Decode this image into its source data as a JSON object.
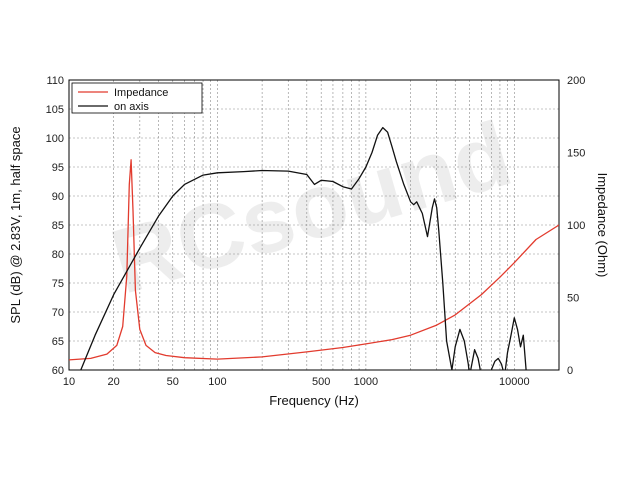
{
  "chart_data": {
    "type": "line",
    "xlabel": "Frequency (Hz)",
    "ylabel": "SPL (dB) @ 2.83V, 1m, half space",
    "y2label": "Impedance (Ohm)",
    "xscale": "log",
    "xlim": [
      10,
      20000
    ],
    "ylim": [
      60,
      110
    ],
    "y2lim": [
      0,
      200
    ],
    "grid": true,
    "legend_position": "top-left",
    "x_ticks": [
      10,
      20,
      50,
      100,
      500,
      1000,
      10000
    ],
    "x_tick_labels": [
      "10",
      "20",
      "50",
      "100",
      "500",
      "1000",
      "10000"
    ],
    "y_ticks": [
      60,
      65,
      70,
      75,
      80,
      85,
      90,
      95,
      100,
      105,
      110
    ],
    "y_tick_labels": [
      "60",
      "65",
      "70",
      "75",
      "80",
      "85",
      "90",
      "95",
      "100",
      "105",
      "110"
    ],
    "y2_ticks": [
      0,
      50,
      100,
      150,
      200
    ],
    "y2_tick_labels": [
      "0",
      "50",
      "100",
      "150",
      "200"
    ],
    "watermark": "RCsound",
    "series": [
      {
        "name": "Impedance",
        "axis": "right",
        "color": "#e23b2e",
        "x": [
          10,
          14,
          18,
          21,
          23,
          24.5,
          25.5,
          26.2,
          27,
          28,
          30,
          33,
          38,
          45,
          60,
          100,
          200,
          400,
          700,
          1000,
          1500,
          2000,
          3000,
          4000,
          6000,
          8000,
          10000,
          14000,
          20000
        ],
        "y": [
          7,
          8,
          11,
          17,
          30,
          65,
          128,
          145,
          110,
          55,
          28,
          17,
          12,
          10,
          8.5,
          7.5,
          9,
          12.5,
          15.5,
          18,
          21,
          24,
          31,
          38,
          52,
          64,
          74,
          90,
          100
        ]
      },
      {
        "name": "on axis",
        "axis": "left",
        "color": "#111111",
        "x": [
          12,
          15,
          20,
          30,
          40,
          50,
          60,
          80,
          100,
          150,
          200,
          300,
          400,
          450,
          500,
          550,
          600,
          700,
          800,
          900,
          1000,
          1100,
          1200,
          1300,
          1400,
          1500,
          1600,
          1800,
          2000,
          2100,
          2200,
          2400,
          2600,
          2800,
          2900,
          3000,
          3100,
          3300,
          3500,
          3800,
          4000,
          4300,
          4600,
          4900,
          5000,
          5400,
          5700,
          6000,
          6500,
          7000,
          7400,
          7800,
          8200,
          8600,
          9000,
          9500,
          10000,
          10500,
          11000,
          11500,
          12000
        ],
        "y": [
          60,
          66,
          73,
          81,
          86.5,
          90,
          92,
          93.6,
          94,
          94.2,
          94.4,
          94.3,
          93.7,
          92,
          92.7,
          92.6,
          92.5,
          91.6,
          91.2,
          93,
          95,
          97.5,
          100.5,
          101.8,
          101,
          98.5,
          96,
          92,
          89,
          88.5,
          89,
          87,
          83,
          88,
          89.5,
          88,
          84,
          75,
          65,
          60,
          64,
          67,
          65,
          61,
          59,
          63.5,
          62,
          59,
          58,
          60,
          61.5,
          62,
          61,
          59,
          63,
          66,
          69,
          67,
          64,
          66,
          60
        ]
      }
    ]
  }
}
